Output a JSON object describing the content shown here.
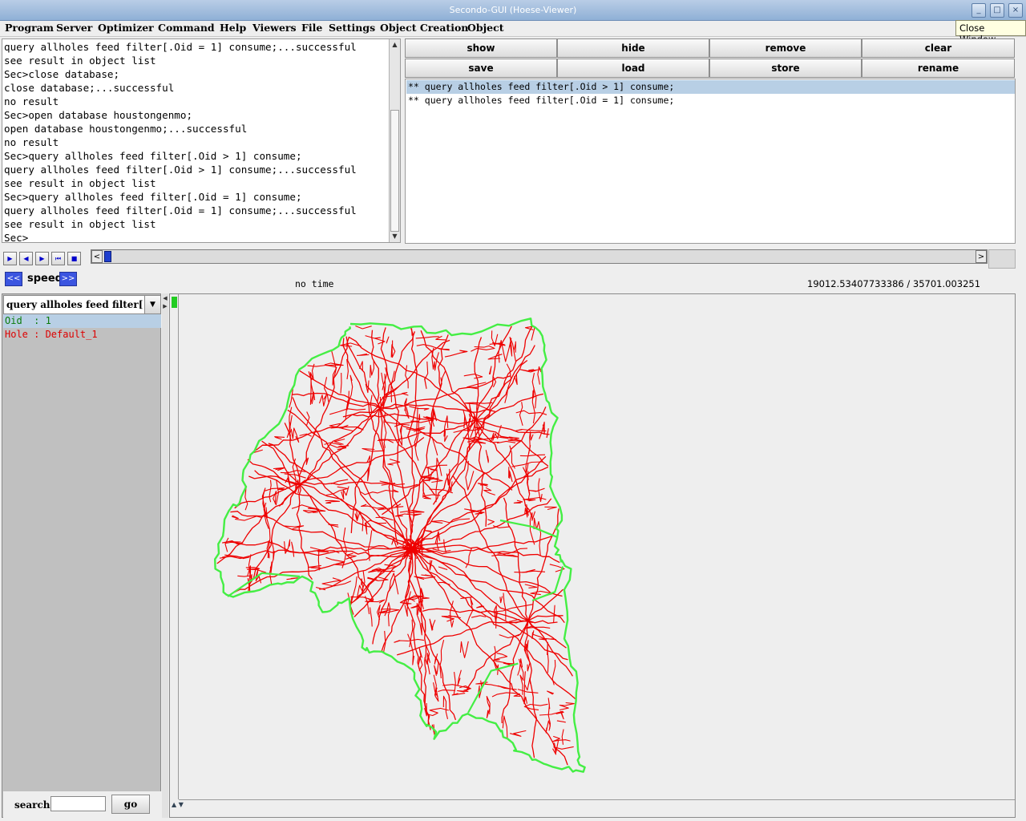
{
  "window": {
    "title": "Secondo-GUI (Hoese-Viewer)"
  },
  "menu": [
    "Program",
    "Server",
    "Optimizer",
    "Command",
    "Help",
    "Viewers",
    "File",
    "Settings",
    "Object Creation",
    "Object"
  ],
  "tooltip": "Close Window",
  "console": {
    "lines": [
      "query allholes feed filter[.Oid = 1] consume;...successful",
      "see result in object list",
      "Sec>close database;",
      "close database;...successful",
      "no result",
      "Sec>open database houstongenmo;",
      "open database houstongenmo;...successful",
      "no result",
      "Sec>query allholes feed filter[.Oid > 1] consume;",
      "query allholes feed filter[.Oid > 1] consume;...successful",
      "see result in object list",
      "Sec>query allholes feed filter[.Oid = 1] consume;",
      "query allholes feed filter[.Oid = 1] consume;...successful",
      "see result in object list",
      "Sec>"
    ]
  },
  "objectButtons": {
    "row1": [
      "show",
      "hide",
      "remove",
      "clear"
    ],
    "row2": [
      "save",
      "load",
      "store",
      "rename"
    ]
  },
  "objectList": [
    "** query allholes feed filter[.Oid > 1] consume;",
    "** query allholes feed filter[.Oid = 1] consume;"
  ],
  "timeControls": {
    "speed_label": "speed",
    "slower": "<<",
    "faster": ">>",
    "time_label": "no time",
    "coords": "19012.53407733386 / 35701.003251"
  },
  "leftPanel": {
    "combo_value": "query allholes feed filter[....",
    "attributes": [
      {
        "text": "Oid  : 1",
        "color": "#0a7a0a"
      },
      {
        "text": "Hole : Default_1",
        "color": "#dd0000"
      }
    ],
    "search_label": "search",
    "search_value": "",
    "go_label": "go"
  },
  "colors": {
    "roads": "#ee0000",
    "holes": "#44ee44"
  }
}
